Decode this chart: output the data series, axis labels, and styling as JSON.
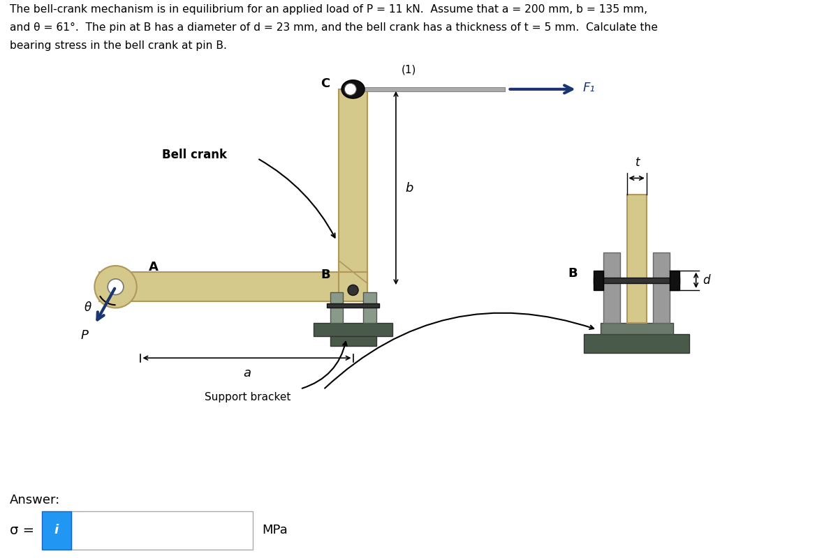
{
  "title_line1": "The bell-crank mechanism is in equilibrium for an applied load of P = 11 kN.  Assume that a = 200 mm, b = 135 mm,",
  "title_line2": "and θ = 61°.  The pin at B has a diameter of d = 23 mm, and the bell crank has a thickness of t = 5 mm.  Calculate the",
  "title_line3": "bearing stress in the bell crank at pin B.",
  "answer_label": "Answer:",
  "sigma_label": "σ =",
  "mpa_label": "MPa",
  "bell_crank_label": "Bell crank",
  "support_bracket_label": "Support bracket",
  "label_C": "C",
  "label_B": "B",
  "label_A": "A",
  "label_a": "a",
  "label_b": "b",
  "label_t": "t",
  "label_d": "d",
  "label_theta": "θ",
  "label_P": "P",
  "label_F1": "F₁",
  "label_1": "(1)",
  "crank_color": "#d4c88a",
  "crank_edge": "#b0985a",
  "support_color": "#8a9a8a",
  "bracket_dark": "#4a5a4a",
  "bracket_mid": "#6a7a6a",
  "pin_color": "#222222",
  "arrow_color": "#1a3570",
  "bg_color": "#ffffff",
  "text_color": "#000000",
  "info_box_color": "#2196F3",
  "rod_color": "#aaaaaa",
  "rod_edge": "#888888"
}
